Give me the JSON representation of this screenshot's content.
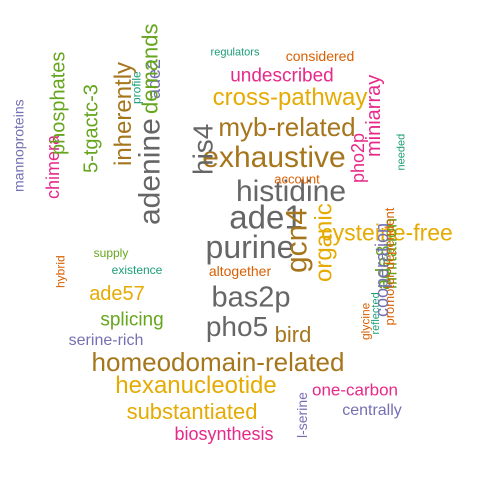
{
  "colors": {
    "green": "#1b9e77",
    "orange": "#d95f02",
    "purple": "#7570b3",
    "magenta": "#e7298a",
    "olive": "#66a61e",
    "gold": "#e6ab02",
    "brown": "#a6761d",
    "gray": "#666666"
  },
  "words": {
    "regulators": "regulators",
    "considered": "considered",
    "undescribed": "undescribed",
    "cross_pathway": "cross-pathway",
    "myb_related": "myb-related",
    "exhaustive": "exhaustive",
    "histidine": "histidine",
    "ade1": "ade1",
    "purine": "purine",
    "bas2p": "bas2p",
    "pho5": "pho5",
    "cysteine_free": "cysteine-free",
    "account": "account",
    "homeodomain_related": "homeodomain-related",
    "hexanucleotide": "hexanucleotide",
    "substantiated": "substantiated",
    "biosynthesis": "biosynthesis",
    "one_carbon": "one-carbon",
    "centrally": "centrally",
    "altogether": "altogether",
    "existence": "existence",
    "supply": "supply",
    "ade57": "ade57",
    "splicing": "splicing",
    "serine_rich": "serine-rich",
    "bird": "bird",
    "profile": "profile",
    "mannoproteins": "mannoproteins",
    "chimera": "chimera",
    "phosphates": "phosphates",
    "five_tgactc_3": "5-tgactc-3",
    "inherently": "inherently",
    "ade2": "ade2",
    "demands": "demands",
    "adenine": "adenine",
    "his4": "his4",
    "gcn4": "gcn4",
    "organic": "organic",
    "pho2p": "pho2p",
    "miniarray": "miniarray",
    "ade8": "ade8",
    "limitation": "limitation",
    "glycine": "glycine",
    "reflected": "reflected",
    "needed": "needed",
    "promoter_dependent": "promoter-dependent",
    "hybrid": "hybrid",
    "l_serine": "l-serine",
    "cooperation": "cooperation"
  }
}
